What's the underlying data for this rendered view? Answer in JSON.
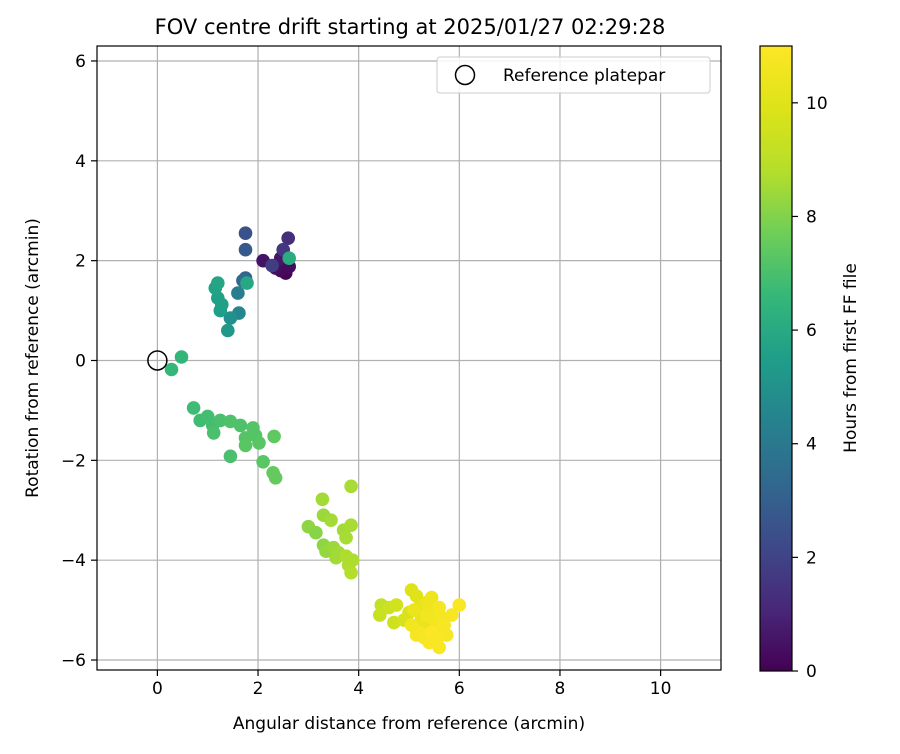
{
  "chart_data": {
    "type": "scatter",
    "title": "FOV centre drift starting at 2025/01/27 02:29:28",
    "xlabel": "Angular distance from reference (arcmin)",
    "ylabel": "Rotation from reference (arcmin)",
    "xlim": [
      -1.2,
      11.2
    ],
    "ylim": [
      -6.2,
      6.3
    ],
    "xticks": [
      0,
      2,
      4,
      6,
      8,
      10
    ],
    "yticks": [
      6,
      4,
      2,
      0,
      -2,
      -4,
      -6
    ],
    "grid": true,
    "legend": {
      "position": "top-right",
      "label": "Reference platepar"
    },
    "reference_point": {
      "x": 0,
      "y": 0
    },
    "colorbar": {
      "label": "Hours from first FF file",
      "min": 0,
      "max": 11,
      "ticks": [
        0,
        2,
        4,
        6,
        8,
        10
      ],
      "colormap": "viridis"
    },
    "points": [
      {
        "x": 2.55,
        "y": 1.75,
        "h": 0.1
      },
      {
        "x": 2.45,
        "y": 1.8,
        "h": 0.2
      },
      {
        "x": 2.62,
        "y": 1.88,
        "h": 0.3
      },
      {
        "x": 2.35,
        "y": 1.85,
        "h": 0.4
      },
      {
        "x": 2.1,
        "y": 2.0,
        "h": 0.5
      },
      {
        "x": 2.45,
        "y": 2.05,
        "h": 0.6
      },
      {
        "x": 2.6,
        "y": 2.45,
        "h": 1.3
      },
      {
        "x": 2.5,
        "y": 2.22,
        "h": 1.6
      },
      {
        "x": 2.28,
        "y": 1.9,
        "h": 1.8
      },
      {
        "x": 1.75,
        "y": 2.55,
        "h": 2.5
      },
      {
        "x": 1.75,
        "y": 2.22,
        "h": 2.8
      },
      {
        "x": 1.75,
        "y": 1.65,
        "h": 3.1
      },
      {
        "x": 1.7,
        "y": 1.6,
        "h": 3.4
      },
      {
        "x": 1.6,
        "y": 1.35,
        "h": 4.2
      },
      {
        "x": 1.62,
        "y": 0.95,
        "h": 4.6
      },
      {
        "x": 1.45,
        "y": 0.85,
        "h": 5.0
      },
      {
        "x": 1.4,
        "y": 0.6,
        "h": 5.3
      },
      {
        "x": 1.25,
        "y": 1.0,
        "h": 5.5
      },
      {
        "x": 1.28,
        "y": 1.12,
        "h": 5.6
      },
      {
        "x": 1.2,
        "y": 1.25,
        "h": 5.6
      },
      {
        "x": 1.15,
        "y": 1.45,
        "h": 5.7
      },
      {
        "x": 1.2,
        "y": 1.55,
        "h": 5.8
      },
      {
        "x": 1.78,
        "y": 1.55,
        "h": 5.9
      },
      {
        "x": 2.62,
        "y": 2.05,
        "h": 6.1
      },
      {
        "x": 0.48,
        "y": 0.07,
        "h": 6.5
      },
      {
        "x": 0.28,
        "y": -0.18,
        "h": 6.6
      },
      {
        "x": 0.72,
        "y": -0.95,
        "h": 6.8
      },
      {
        "x": 0.85,
        "y": -1.2,
        "h": 6.8
      },
      {
        "x": 1.0,
        "y": -1.12,
        "h": 6.9
      },
      {
        "x": 1.1,
        "y": -1.3,
        "h": 6.9
      },
      {
        "x": 1.12,
        "y": -1.45,
        "h": 7.0
      },
      {
        "x": 1.25,
        "y": -1.2,
        "h": 7.0
      },
      {
        "x": 1.45,
        "y": -1.22,
        "h": 7.1
      },
      {
        "x": 1.65,
        "y": -1.3,
        "h": 7.1
      },
      {
        "x": 1.75,
        "y": -1.55,
        "h": 7.2
      },
      {
        "x": 1.9,
        "y": -1.35,
        "h": 7.2
      },
      {
        "x": 1.95,
        "y": -1.5,
        "h": 7.2
      },
      {
        "x": 2.02,
        "y": -1.65,
        "h": 7.3
      },
      {
        "x": 1.75,
        "y": -1.7,
        "h": 7.3
      },
      {
        "x": 1.45,
        "y": -1.92,
        "h": 7.0
      },
      {
        "x": 2.1,
        "y": -2.03,
        "h": 7.3
      },
      {
        "x": 2.32,
        "y": -1.52,
        "h": 7.4
      },
      {
        "x": 2.3,
        "y": -2.25,
        "h": 7.5
      },
      {
        "x": 2.35,
        "y": -2.35,
        "h": 7.5
      },
      {
        "x": 3.28,
        "y": -2.78,
        "h": 8.5
      },
      {
        "x": 3.85,
        "y": -2.52,
        "h": 8.6
      },
      {
        "x": 3.3,
        "y": -3.1,
        "h": 8.4
      },
      {
        "x": 3.45,
        "y": -3.2,
        "h": 8.5
      },
      {
        "x": 3.0,
        "y": -3.33,
        "h": 8.2
      },
      {
        "x": 3.15,
        "y": -3.45,
        "h": 8.1
      },
      {
        "x": 3.3,
        "y": -3.7,
        "h": 8.2
      },
      {
        "x": 3.35,
        "y": -3.82,
        "h": 8.3
      },
      {
        "x": 3.5,
        "y": -3.75,
        "h": 8.4
      },
      {
        "x": 3.6,
        "y": -3.85,
        "h": 8.5
      },
      {
        "x": 3.7,
        "y": -3.4,
        "h": 8.5
      },
      {
        "x": 3.75,
        "y": -3.55,
        "h": 8.6
      },
      {
        "x": 3.85,
        "y": -3.3,
        "h": 8.6
      },
      {
        "x": 3.55,
        "y": -3.95,
        "h": 8.5
      },
      {
        "x": 3.8,
        "y": -4.1,
        "h": 8.7
      },
      {
        "x": 3.88,
        "y": -4.0,
        "h": 8.7
      },
      {
        "x": 3.85,
        "y": -4.25,
        "h": 8.8
      },
      {
        "x": 3.75,
        "y": -3.92,
        "h": 8.7
      },
      {
        "x": 4.45,
        "y": -4.9,
        "h": 9.2
      },
      {
        "x": 4.42,
        "y": -5.1,
        "h": 9.3
      },
      {
        "x": 4.6,
        "y": -4.95,
        "h": 9.4
      },
      {
        "x": 4.7,
        "y": -5.25,
        "h": 9.5
      },
      {
        "x": 4.75,
        "y": -4.9,
        "h": 9.6
      },
      {
        "x": 4.9,
        "y": -5.2,
        "h": 9.7
      },
      {
        "x": 5.0,
        "y": -5.05,
        "h": 9.8
      },
      {
        "x": 5.05,
        "y": -4.6,
        "h": 9.9
      },
      {
        "x": 5.15,
        "y": -4.72,
        "h": 10.0
      },
      {
        "x": 5.2,
        "y": -4.95,
        "h": 10.1
      },
      {
        "x": 5.25,
        "y": -5.15,
        "h": 10.2
      },
      {
        "x": 5.3,
        "y": -5.3,
        "h": 10.3
      },
      {
        "x": 5.35,
        "y": -4.85,
        "h": 10.4
      },
      {
        "x": 5.4,
        "y": -5.0,
        "h": 10.5
      },
      {
        "x": 5.45,
        "y": -4.75,
        "h": 10.5
      },
      {
        "x": 5.5,
        "y": -5.2,
        "h": 10.6
      },
      {
        "x": 5.55,
        "y": -5.35,
        "h": 10.6
      },
      {
        "x": 5.6,
        "y": -4.95,
        "h": 10.7
      },
      {
        "x": 5.65,
        "y": -5.15,
        "h": 10.7
      },
      {
        "x": 5.7,
        "y": -5.3,
        "h": 10.8
      },
      {
        "x": 5.75,
        "y": -5.5,
        "h": 10.8
      },
      {
        "x": 5.6,
        "y": -5.75,
        "h": 10.9
      },
      {
        "x": 5.4,
        "y": -5.65,
        "h": 10.9
      },
      {
        "x": 5.2,
        "y": -5.45,
        "h": 10.8
      },
      {
        "x": 5.15,
        "y": -5.5,
        "h": 10.7
      },
      {
        "x": 5.05,
        "y": -5.3,
        "h": 10.6
      },
      {
        "x": 5.3,
        "y": -5.55,
        "h": 10.8
      },
      {
        "x": 5.45,
        "y": -5.45,
        "h": 11.0
      },
      {
        "x": 5.55,
        "y": -5.6,
        "h": 10.9
      },
      {
        "x": 6.0,
        "y": -4.9,
        "h": 10.9
      },
      {
        "x": 5.85,
        "y": -5.1,
        "h": 10.8
      },
      {
        "x": 5.1,
        "y": -5.0,
        "h": 10.4
      },
      {
        "x": 5.35,
        "y": -5.1,
        "h": 10.6
      }
    ]
  }
}
